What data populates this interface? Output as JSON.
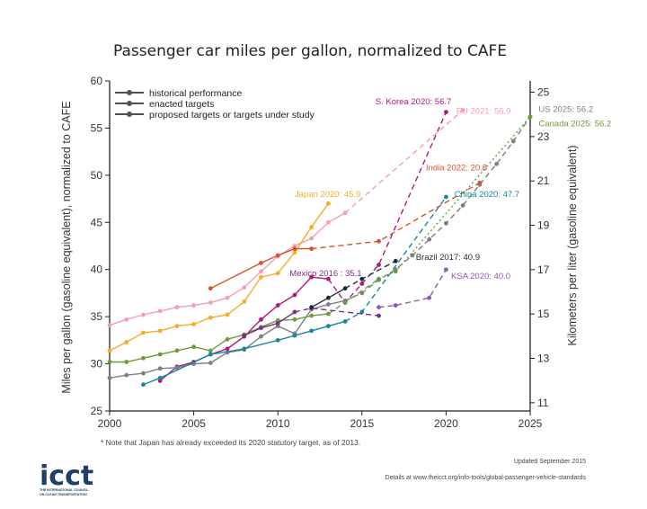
{
  "chart_data": {
    "type": "line",
    "title": "Passenger car miles per gallon, normalized to CAFE",
    "ylabel": "Miles per gallon (gasoline equivalent), normalized to CAFE",
    "ylabel_right": "Kilometers per liter (gasoline equivalent)",
    "xlim": [
      2000,
      2025
    ],
    "ylim": [
      25,
      60
    ],
    "x_ticks": [
      "2000",
      "2005",
      "2010",
      "2015",
      "2020",
      "2025"
    ],
    "y_ticks": [
      "25",
      "30",
      "35",
      "40",
      "45",
      "50",
      "55",
      "60"
    ],
    "y_right_ticks": [
      {
        "label": "11",
        "kml": 11
      },
      {
        "label": "13",
        "kml": 13
      },
      {
        "label": "15",
        "kml": 15
      },
      {
        "label": "17",
        "kml": 17
      },
      {
        "label": "19",
        "kml": 19
      },
      {
        "label": "21",
        "kml": 21
      },
      {
        "label": "23",
        "kml": 23
      },
      {
        "label": "25",
        "kml": 25
      }
    ],
    "grid": false,
    "legend_position": "top-left",
    "legend": [
      {
        "label": "historical performance",
        "style": "solid"
      },
      {
        "label": "enacted targets",
        "style": "dashed"
      },
      {
        "label": "proposed targets or targets under study",
        "style": "dotted"
      }
    ],
    "series": [
      {
        "name": "S. Korea",
        "label": "S. Korea 2020: 56.7",
        "color": "#b0177a",
        "historical": [
          [
            2003,
            28.2
          ],
          [
            2004,
            29.7
          ],
          [
            2005,
            30.2
          ],
          [
            2006,
            31.0
          ],
          [
            2007,
            31.6
          ],
          [
            2008,
            32.9
          ],
          [
            2009,
            34.7
          ],
          [
            2010,
            36.2
          ],
          [
            2011,
            37.3
          ],
          [
            2012,
            39.2
          ],
          [
            2013,
            39.0
          ]
        ],
        "enacted": [
          [
            2013,
            39.0
          ],
          [
            2014,
            36.5
          ],
          [
            2015,
            38.5
          ],
          [
            2016,
            40.5
          ],
          [
            2020,
            56.7
          ]
        ],
        "proposed": []
      },
      {
        "name": "EU",
        "label": "EU 2021: 56.9",
        "color": "#f29fb6",
        "historical": [
          [
            2000,
            34.1
          ],
          [
            2001,
            34.7
          ],
          [
            2002,
            35.2
          ],
          [
            2003,
            35.6
          ],
          [
            2004,
            36.0
          ],
          [
            2005,
            36.2
          ],
          [
            2006,
            36.5
          ],
          [
            2007,
            37.0
          ],
          [
            2008,
            38.1
          ],
          [
            2009,
            39.8
          ],
          [
            2010,
            41.4
          ],
          [
            2011,
            42.5
          ],
          [
            2012,
            43.3
          ],
          [
            2013,
            45.0
          ],
          [
            2014,
            46.0
          ]
        ],
        "enacted": [
          [
            2014,
            46.0
          ],
          [
            2021,
            56.9
          ]
        ],
        "proposed": []
      },
      {
        "name": "US",
        "label": "US 2025: 56.2",
        "color": "#7a7f84",
        "historical": [
          [
            2000,
            28.5
          ],
          [
            2001,
            28.8
          ],
          [
            2002,
            29.0
          ],
          [
            2003,
            29.5
          ],
          [
            2004,
            29.6
          ],
          [
            2005,
            30.0
          ],
          [
            2006,
            30.1
          ],
          [
            2007,
            31.2
          ],
          [
            2008,
            31.5
          ],
          [
            2009,
            32.9
          ],
          [
            2010,
            34.0
          ],
          [
            2011,
            33.2
          ],
          [
            2012,
            35.8
          ],
          [
            2013,
            36.3
          ],
          [
            2014,
            36.7
          ]
        ],
        "enacted": [
          [
            2014,
            36.7
          ],
          [
            2015,
            37.5
          ],
          [
            2016,
            38.9
          ],
          [
            2017,
            40.0
          ],
          [
            2018,
            41.5
          ],
          [
            2019,
            43.2
          ],
          [
            2020,
            44.9
          ],
          [
            2021,
            46.8
          ],
          [
            2022,
            49.0
          ],
          [
            2023,
            51.2
          ],
          [
            2024,
            53.6
          ],
          [
            2025,
            56.2
          ]
        ],
        "proposed": []
      },
      {
        "name": "Canada",
        "label": "Canada 2025: 56.2",
        "color": "#6f9a3a",
        "historical": [
          [
            2000,
            30.2
          ],
          [
            2001,
            30.2
          ],
          [
            2002,
            30.6
          ],
          [
            2003,
            31.0
          ],
          [
            2004,
            31.4
          ],
          [
            2005,
            31.8
          ],
          [
            2006,
            31.4
          ],
          [
            2007,
            32.6
          ],
          [
            2008,
            33.1
          ],
          [
            2009,
            33.9
          ],
          [
            2010,
            34.6
          ],
          [
            2011,
            34.7
          ],
          [
            2012,
            35.1
          ],
          [
            2013,
            35.3
          ]
        ],
        "enacted": [
          [
            2013,
            35.3
          ],
          [
            2014,
            36.5
          ],
          [
            2016,
            39.0
          ]
        ],
        "proposed": [
          [
            2016,
            39.0
          ],
          [
            2017,
            39.8
          ],
          [
            2025,
            56.2
          ]
        ]
      },
      {
        "name": "Japan",
        "label": "Japan 2020: 45.9",
        "color": "#f5ac2a",
        "historical": [
          [
            2000,
            31.4
          ],
          [
            2001,
            32.3
          ],
          [
            2002,
            33.3
          ],
          [
            2003,
            33.5
          ],
          [
            2004,
            34.0
          ],
          [
            2005,
            34.2
          ],
          [
            2006,
            34.9
          ],
          [
            2007,
            35.2
          ],
          [
            2008,
            36.6
          ],
          [
            2009,
            39.2
          ],
          [
            2010,
            39.6
          ],
          [
            2011,
            41.8
          ],
          [
            2012,
            44.5
          ],
          [
            2013,
            47.0
          ]
        ],
        "enacted": [],
        "proposed": []
      },
      {
        "name": "India",
        "label": "India 2022: 20.8",
        "color": "#d9512c",
        "historical": [
          [
            2006,
            38.0
          ],
          [
            2009,
            40.7
          ],
          [
            2010,
            41.5
          ],
          [
            2011,
            42.2
          ],
          [
            2012,
            42.2
          ]
        ],
        "enacted": [
          [
            2012,
            42.2
          ],
          [
            2016,
            43.0
          ],
          [
            2022,
            49.2
          ]
        ],
        "proposed": []
      },
      {
        "name": "China",
        "label": "China 2020: 47.7",
        "color": "#16889e",
        "historical": [
          [
            2002,
            27.8
          ],
          [
            2003,
            28.5
          ],
          [
            2006,
            31.0
          ],
          [
            2008,
            31.6
          ],
          [
            2010,
            32.5
          ],
          [
            2011,
            33.0
          ],
          [
            2012,
            33.5
          ],
          [
            2013,
            34.0
          ],
          [
            2014,
            34.5
          ]
        ],
        "enacted": [
          [
            2014,
            34.5
          ],
          [
            2015,
            35.5
          ],
          [
            2020,
            47.7
          ]
        ],
        "proposed": []
      },
      {
        "name": "Mexico",
        "label": "Mexico 2016 : 35.1",
        "color": "#7a2f8c",
        "historical": [
          [
            2008,
            33.0
          ],
          [
            2009,
            33.8
          ],
          [
            2010,
            34.3
          ],
          [
            2011,
            35.5
          ]
        ],
        "enacted": [
          [
            2011,
            35.5
          ],
          [
            2012,
            35.9
          ],
          [
            2016,
            35.1
          ]
        ],
        "proposed": []
      },
      {
        "name": "Brazil",
        "label": "Brazil 2017: 40.9",
        "color": "#1d2a3a",
        "historical": [
          [
            2012,
            36.0
          ],
          [
            2013,
            37.0
          ],
          [
            2014,
            38.0
          ]
        ],
        "enacted": [
          [
            2014,
            38.0
          ],
          [
            2015,
            39.0
          ],
          [
            2017,
            40.9
          ]
        ],
        "proposed": []
      },
      {
        "name": "KSA",
        "label": "KSA 2020: 40.0",
        "color": "#8a5ab0",
        "historical": [],
        "enacted": [
          [
            2016,
            36.0
          ],
          [
            2017,
            36.2
          ],
          [
            2019,
            37.0
          ],
          [
            2020,
            40.0
          ]
        ],
        "proposed": []
      }
    ],
    "annotations": [
      "* Note that Japan has already exceeded its 2020 statutory target, as of 2013."
    ]
  },
  "footer": {
    "updated": "Updated September 2015",
    "details": "Details at www.theicct.org/info-tools/global-passenger-vehicle-standards"
  },
  "logo": {
    "name": "icct",
    "tagline": [
      "THE INTERNATIONAL COUNCIL",
      "ON CLEAN TRANSPORTATION"
    ]
  },
  "colors": {
    "axis": "#222222",
    "logo": "#1e3f66"
  }
}
